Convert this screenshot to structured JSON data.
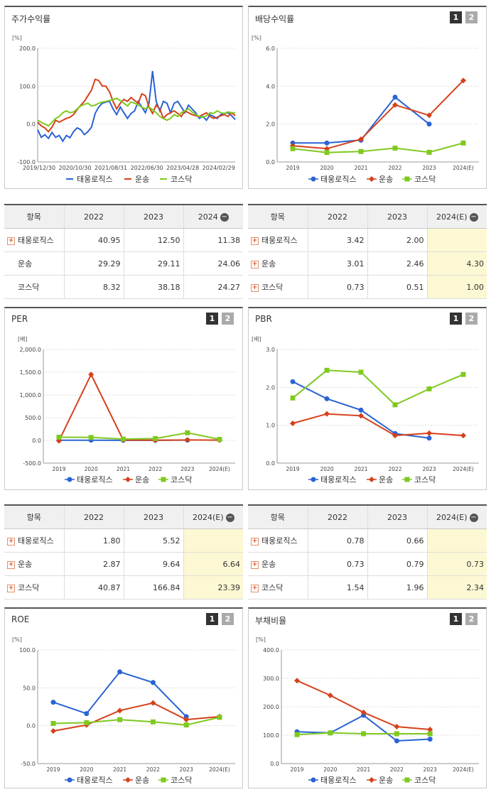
{
  "colors": {
    "tw": "#2a63d4",
    "un": "#d6401a",
    "ko": "#7fc91f"
  },
  "legend": [
    "태웅로직스",
    "운송",
    "코스닥"
  ],
  "page_buttons": [
    "1",
    "2"
  ],
  "charts": {
    "stock": {
      "title": "주가수익률",
      "chart_data": {
        "type": "line",
        "unit": "[%]",
        "ylim": [
          -100,
          200
        ],
        "y_ticks": [
          "200.0",
          "100.0",
          "0.0",
          "-100.0"
        ],
        "x_ticks": [
          "2019/12/30",
          "2020/10/30",
          "2021/08/31",
          "2022/06/30",
          "2023/04/28",
          "2024/02/29"
        ],
        "x_count": 56,
        "series": [
          {
            "name": "태웅로직스",
            "values": [
              -15,
              -35,
              -28,
              -38,
              -22,
              -35,
              -30,
              -45,
              -30,
              -36,
              -20,
              -10,
              -15,
              -28,
              -20,
              -8,
              28,
              45,
              55,
              58,
              60,
              40,
              25,
              45,
              30,
              15,
              28,
              35,
              60,
              45,
              30,
              55,
              140,
              60,
              35,
              60,
              55,
              30,
              55,
              60,
              45,
              30,
              50,
              40,
              30,
              15,
              20,
              10,
              25,
              20,
              15,
              25,
              28,
              30,
              22,
              12
            ]
          },
          {
            "name": "운송",
            "values": [
              5,
              -5,
              -10,
              -20,
              -8,
              10,
              5,
              10,
              15,
              18,
              25,
              38,
              50,
              60,
              75,
              90,
              118,
              115,
              100,
              100,
              85,
              60,
              40,
              55,
              65,
              60,
              70,
              62,
              55,
              80,
              75,
              45,
              28,
              50,
              40,
              15,
              25,
              30,
              35,
              28,
              20,
              35,
              30,
              25,
              22,
              20,
              25,
              30,
              20,
              15,
              18,
              22,
              25,
              20,
              30,
              22
            ]
          },
          {
            "name": "코스닥",
            "values": [
              10,
              5,
              0,
              -5,
              5,
              15,
              20,
              30,
              35,
              30,
              32,
              40,
              48,
              52,
              55,
              48,
              50,
              55,
              58,
              60,
              62,
              65,
              68,
              62,
              55,
              48,
              58,
              55,
              50,
              45,
              40,
              45,
              38,
              30,
              20,
              15,
              10,
              15,
              25,
              20,
              30,
              35,
              40,
              32,
              25,
              20,
              18,
              22,
              30,
              28,
              35,
              30,
              28,
              32,
              30,
              30
            ]
          }
        ]
      }
    },
    "dividend": {
      "title": "배당수익률",
      "chart_data": {
        "type": "line",
        "unit": "[%]",
        "ylim": [
          0,
          6
        ],
        "y_ticks": [
          "6.0",
          "4.0",
          "2.0",
          "0.0"
        ],
        "categories": [
          "2019",
          "2020",
          "2021",
          "2022",
          "2023",
          "2024(E)"
        ],
        "series": [
          {
            "name": "태웅로직스",
            "values": [
              1.0,
              1.0,
              1.15,
              3.42,
              2.0,
              null
            ]
          },
          {
            "name": "운송",
            "values": [
              0.85,
              0.7,
              1.2,
              3.01,
              2.46,
              4.3
            ]
          },
          {
            "name": "코스닥",
            "values": [
              0.7,
              0.5,
              0.55,
              0.73,
              0.51,
              1.0
            ]
          }
        ]
      }
    },
    "per": {
      "title": "PER",
      "chart_data": {
        "type": "line",
        "unit": "[배]",
        "ylim": [
          -500,
          2000
        ],
        "y_ticks": [
          "2,000.0",
          "1,500.0",
          "1,000.0",
          "500.0",
          "0.0",
          "-500.0"
        ],
        "categories": [
          "2019",
          "2020",
          "2021",
          "2022",
          "2023",
          "2024(E)"
        ],
        "series": [
          {
            "name": "태웅로직스",
            "values": [
              5,
              5,
              2,
              1.8,
              5.52,
              null
            ]
          },
          {
            "name": "운송",
            "values": [
              -10,
              1450,
              8,
              2.87,
              9.64,
              6.64
            ]
          },
          {
            "name": "코스닥",
            "values": [
              70,
              65,
              30,
              40.87,
              166.84,
              23.39
            ]
          }
        ]
      }
    },
    "pbr": {
      "title": "PBR",
      "chart_data": {
        "type": "line",
        "unit": "[배]",
        "ylim": [
          0,
          3
        ],
        "y_ticks": [
          "3.0",
          "2.0",
          "1.0",
          "0.0"
        ],
        "categories": [
          "2019",
          "2020",
          "2021",
          "2022",
          "2023",
          "2024(E)"
        ],
        "series": [
          {
            "name": "태웅로직스",
            "values": [
              2.15,
              1.7,
              1.4,
              0.78,
              0.66,
              null
            ]
          },
          {
            "name": "운송",
            "values": [
              1.05,
              1.3,
              1.25,
              0.73,
              0.79,
              0.73
            ]
          },
          {
            "name": "코스닥",
            "values": [
              1.72,
              2.45,
              2.4,
              1.54,
              1.96,
              2.34
            ]
          }
        ]
      }
    },
    "roe": {
      "title": "ROE",
      "chart_data": {
        "type": "line",
        "unit": "[%]",
        "ylim": [
          -50,
          100
        ],
        "y_ticks": [
          "100.0",
          "50.0",
          "0.0",
          "-50.0"
        ],
        "categories": [
          "2019",
          "2020",
          "2021",
          "2022",
          "2023",
          "2024(E)"
        ],
        "series": [
          {
            "name": "태웅로직스",
            "values": [
              31,
              16,
              71,
              57,
              12,
              null
            ]
          },
          {
            "name": "운송",
            "values": [
              -7,
              1,
              20,
              30,
              8,
              12
            ]
          },
          {
            "name": "코스닥",
            "values": [
              3,
              4,
              8,
              5,
              1,
              11
            ]
          }
        ]
      }
    },
    "debt": {
      "title": "부채비율",
      "chart_data": {
        "type": "line",
        "unit": "[%]",
        "ylim": [
          0,
          400
        ],
        "y_ticks": [
          "400.0",
          "300.0",
          "200.0",
          "100.0",
          "0.0"
        ],
        "categories": [
          "2019",
          "2020",
          "2021",
          "2022",
          "2023",
          "2024(E)"
        ],
        "series": [
          {
            "name": "태웅로직스",
            "values": [
              112,
              108,
              170,
              80,
              86,
              null
            ]
          },
          {
            "name": "운송",
            "values": [
              292,
              240,
              180,
              130,
              120,
              null
            ]
          },
          {
            "name": "코스닥",
            "values": [
              102,
              108,
              105,
              105,
              105,
              null
            ]
          }
        ]
      }
    }
  },
  "tables": {
    "stock": {
      "headers": [
        "항목",
        "2022",
        "2023",
        "2024"
      ],
      "rows": [
        {
          "name": "태웅로직스",
          "plus": true,
          "values": [
            "40.95",
            "12.50",
            "11.38"
          ]
        },
        {
          "name": "운송",
          "plus": false,
          "values": [
            "29.29",
            "29.11",
            "24.06"
          ]
        },
        {
          "name": "코스닥",
          "plus": false,
          "values": [
            "8.32",
            "38.18",
            "24.27"
          ]
        }
      ]
    },
    "dividend": {
      "headers": [
        "항목",
        "2022",
        "2023",
        "2024(E)"
      ],
      "rows": [
        {
          "name": "태웅로직스",
          "plus": true,
          "values": [
            "3.42",
            "2.00",
            ""
          ]
        },
        {
          "name": "운송",
          "plus": true,
          "values": [
            "3.01",
            "2.46",
            "4.30"
          ]
        },
        {
          "name": "코스닥",
          "plus": true,
          "values": [
            "0.73",
            "0.51",
            "1.00"
          ]
        }
      ]
    },
    "per": {
      "headers": [
        "항목",
        "2022",
        "2023",
        "2024(E)"
      ],
      "rows": [
        {
          "name": "태웅로직스",
          "plus": true,
          "values": [
            "1.80",
            "5.52",
            ""
          ]
        },
        {
          "name": "운송",
          "plus": true,
          "values": [
            "2.87",
            "9.64",
            "6.64"
          ]
        },
        {
          "name": "코스닥",
          "plus": true,
          "values": [
            "40.87",
            "166.84",
            "23.39"
          ]
        }
      ]
    },
    "pbr": {
      "headers": [
        "항목",
        "2022",
        "2023",
        "2024(E)"
      ],
      "rows": [
        {
          "name": "태웅로직스",
          "plus": true,
          "values": [
            "0.78",
            "0.66",
            ""
          ]
        },
        {
          "name": "운송",
          "plus": true,
          "values": [
            "0.73",
            "0.79",
            "0.73"
          ]
        },
        {
          "name": "코스닥",
          "plus": true,
          "values": [
            "1.54",
            "1.96",
            "2.34"
          ]
        }
      ]
    }
  }
}
